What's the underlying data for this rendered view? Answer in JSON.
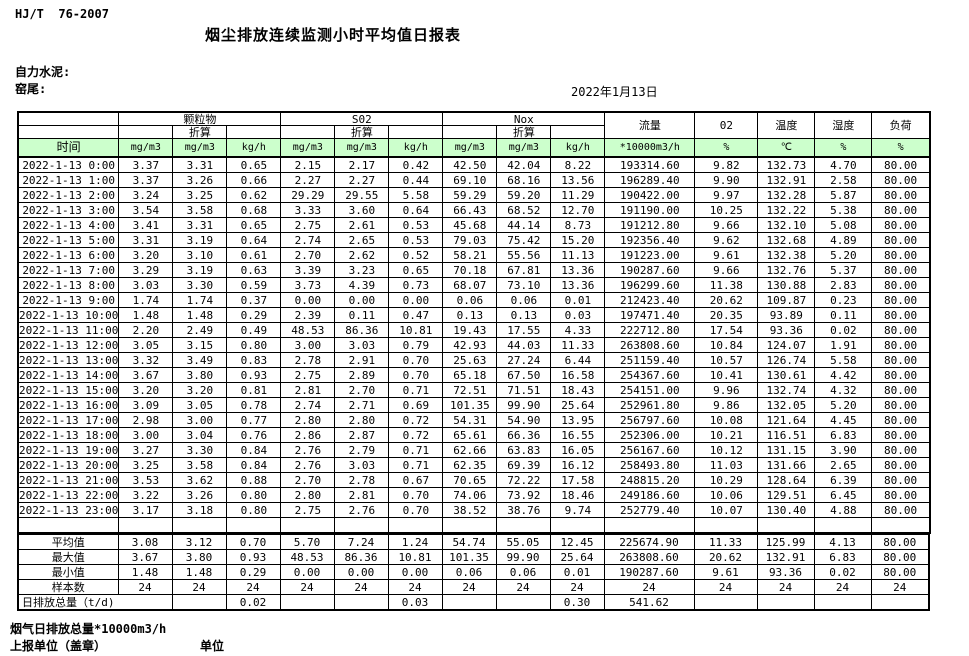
{
  "page": {
    "standard": "HJ/T  76-2007",
    "title": "烟尘排放连续监测小时平均值日报表",
    "company": "自力水泥:",
    "station": "窑尾:",
    "date": "2022年1月13日"
  },
  "colors": {
    "header_green": "#ccffcc"
  },
  "table": {
    "header": {
      "pm": "颗粒物",
      "so2": "S02",
      "nox": "Nox",
      "converted": "折算",
      "flow": "流量",
      "o2": "02",
      "temp": "温度",
      "humidity": "湿度",
      "load": "负荷"
    },
    "units": [
      "时间",
      "mg/m3",
      "mg/m3",
      "kg/h",
      "mg/m3",
      "mg/m3",
      "kg/h",
      "mg/m3",
      "mg/m3",
      "kg/h",
      "*10000m3/h",
      "%",
      "℃",
      "%",
      "%"
    ],
    "rows": [
      [
        "2022-1-13 0:00",
        "3.37",
        "3.31",
        "0.65",
        "2.15",
        "2.17",
        "0.42",
        "42.50",
        "42.04",
        "8.22",
        "193314.60",
        "9.82",
        "132.73",
        "4.70",
        "80.00"
      ],
      [
        "2022-1-13 1:00",
        "3.37",
        "3.26",
        "0.66",
        "2.27",
        "2.27",
        "0.44",
        "69.10",
        "68.16",
        "13.56",
        "196289.40",
        "9.90",
        "132.91",
        "2.58",
        "80.00"
      ],
      [
        "2022-1-13 2:00",
        "3.24",
        "3.25",
        "0.62",
        "29.29",
        "29.55",
        "5.58",
        "59.29",
        "59.20",
        "11.29",
        "190422.00",
        "9.97",
        "132.28",
        "5.87",
        "80.00"
      ],
      [
        "2022-1-13 3:00",
        "3.54",
        "3.58",
        "0.68",
        "3.33",
        "3.60",
        "0.64",
        "66.43",
        "68.52",
        "12.70",
        "191190.00",
        "10.25",
        "132.22",
        "5.38",
        "80.00"
      ],
      [
        "2022-1-13 4:00",
        "3.41",
        "3.31",
        "0.65",
        "2.75",
        "2.61",
        "0.53",
        "45.68",
        "44.14",
        "8.73",
        "191212.80",
        "9.66",
        "132.10",
        "5.08",
        "80.00"
      ],
      [
        "2022-1-13 5:00",
        "3.31",
        "3.19",
        "0.64",
        "2.74",
        "2.65",
        "0.53",
        "79.03",
        "75.42",
        "15.20",
        "192356.40",
        "9.62",
        "132.68",
        "4.89",
        "80.00"
      ],
      [
        "2022-1-13 6:00",
        "3.20",
        "3.10",
        "0.61",
        "2.70",
        "2.62",
        "0.52",
        "58.21",
        "55.56",
        "11.13",
        "191223.00",
        "9.61",
        "132.38",
        "5.20",
        "80.00"
      ],
      [
        "2022-1-13 7:00",
        "3.29",
        "3.19",
        "0.63",
        "3.39",
        "3.23",
        "0.65",
        "70.18",
        "67.81",
        "13.36",
        "190287.60",
        "9.66",
        "132.76",
        "5.37",
        "80.00"
      ],
      [
        "2022-1-13 8:00",
        "3.03",
        "3.30",
        "0.59",
        "3.73",
        "4.39",
        "0.73",
        "68.07",
        "73.10",
        "13.36",
        "196299.60",
        "11.38",
        "130.88",
        "2.83",
        "80.00"
      ],
      [
        "2022-1-13 9:00",
        "1.74",
        "1.74",
        "0.37",
        "0.00",
        "0.00",
        "0.00",
        "0.06",
        "0.06",
        "0.01",
        "212423.40",
        "20.62",
        "109.87",
        "0.23",
        "80.00"
      ],
      [
        "2022-1-13 10:00",
        "1.48",
        "1.48",
        "0.29",
        "2.39",
        "0.11",
        "0.47",
        "0.13",
        "0.13",
        "0.03",
        "197471.40",
        "20.35",
        "93.89",
        "0.11",
        "80.00"
      ],
      [
        "2022-1-13 11:00",
        "2.20",
        "2.49",
        "0.49",
        "48.53",
        "86.36",
        "10.81",
        "19.43",
        "17.55",
        "4.33",
        "222712.80",
        "17.54",
        "93.36",
        "0.02",
        "80.00"
      ],
      [
        "2022-1-13 12:00",
        "3.05",
        "3.15",
        "0.80",
        "3.00",
        "3.03",
        "0.79",
        "42.93",
        "44.03",
        "11.33",
        "263808.60",
        "10.84",
        "124.07",
        "1.91",
        "80.00"
      ],
      [
        "2022-1-13 13:00",
        "3.32",
        "3.49",
        "0.83",
        "2.78",
        "2.91",
        "0.70",
        "25.63",
        "27.24",
        "6.44",
        "251159.40",
        "10.57",
        "126.74",
        "5.58",
        "80.00"
      ],
      [
        "2022-1-13 14:00",
        "3.67",
        "3.80",
        "0.93",
        "2.75",
        "2.89",
        "0.70",
        "65.18",
        "67.50",
        "16.58",
        "254367.60",
        "10.41",
        "130.61",
        "4.42",
        "80.00"
      ],
      [
        "2022-1-13 15:00",
        "3.20",
        "3.20",
        "0.81",
        "2.81",
        "2.70",
        "0.71",
        "72.51",
        "71.51",
        "18.43",
        "254151.00",
        "9.96",
        "132.74",
        "4.32",
        "80.00"
      ],
      [
        "2022-1-13 16:00",
        "3.09",
        "3.05",
        "0.78",
        "2.74",
        "2.71",
        "0.69",
        "101.35",
        "99.90",
        "25.64",
        "252961.80",
        "9.86",
        "132.05",
        "5.20",
        "80.00"
      ],
      [
        "2022-1-13 17:00",
        "2.98",
        "3.00",
        "0.77",
        "2.80",
        "2.80",
        "0.72",
        "54.31",
        "54.90",
        "13.95",
        "256797.60",
        "10.08",
        "121.64",
        "4.45",
        "80.00"
      ],
      [
        "2022-1-13 18:00",
        "3.00",
        "3.04",
        "0.76",
        "2.86",
        "2.87",
        "0.72",
        "65.61",
        "66.36",
        "16.55",
        "252306.00",
        "10.21",
        "116.51",
        "6.83",
        "80.00"
      ],
      [
        "2022-1-13 19:00",
        "3.27",
        "3.30",
        "0.84",
        "2.76",
        "2.79",
        "0.71",
        "62.66",
        "63.83",
        "16.05",
        "256167.60",
        "10.12",
        "131.15",
        "3.90",
        "80.00"
      ],
      [
        "2022-1-13 20:00",
        "3.25",
        "3.58",
        "0.84",
        "2.76",
        "3.03",
        "0.71",
        "62.35",
        "69.39",
        "16.12",
        "258493.80",
        "11.03",
        "131.66",
        "2.65",
        "80.00"
      ],
      [
        "2022-1-13 21:00",
        "3.53",
        "3.62",
        "0.88",
        "2.70",
        "2.78",
        "0.67",
        "70.65",
        "72.22",
        "17.58",
        "248815.20",
        "10.29",
        "128.64",
        "6.39",
        "80.00"
      ],
      [
        "2022-1-13 22:00",
        "3.22",
        "3.26",
        "0.80",
        "2.80",
        "2.81",
        "0.70",
        "74.06",
        "73.92",
        "18.46",
        "249186.60",
        "10.06",
        "129.51",
        "6.45",
        "80.00"
      ],
      [
        "2022-1-13 23:00",
        "3.17",
        "3.18",
        "0.80",
        "2.75",
        "2.76",
        "0.70",
        "38.52",
        "38.76",
        "9.74",
        "252779.40",
        "10.07",
        "130.40",
        "4.88",
        "80.00"
      ]
    ],
    "summary": [
      {
        "label": "平均值",
        "span": 1,
        "values": [
          "3.08",
          "3.12",
          "0.70",
          "5.70",
          "7.24",
          "1.24",
          "54.74",
          "55.05",
          "12.45",
          "225674.90",
          "11.33",
          "125.99",
          "4.13",
          "80.00"
        ]
      },
      {
        "label": "最大值",
        "span": 1,
        "values": [
          "3.67",
          "3.80",
          "0.93",
          "48.53",
          "86.36",
          "10.81",
          "101.35",
          "99.90",
          "25.64",
          "263808.60",
          "20.62",
          "132.91",
          "6.83",
          "80.00"
        ]
      },
      {
        "label": "最小值",
        "span": 1,
        "values": [
          "1.48",
          "1.48",
          "0.29",
          "0.00",
          "0.00",
          "0.00",
          "0.06",
          "0.06",
          "0.01",
          "190287.60",
          "9.61",
          "93.36",
          "0.02",
          "80.00"
        ]
      },
      {
        "label": "样本数",
        "span": 1,
        "values": [
          "24",
          "24",
          "24",
          "24",
          "24",
          "24",
          "24",
          "24",
          "24",
          "24",
          "24",
          "24",
          "24",
          "24"
        ]
      },
      {
        "label": "日排放总量（t/d)",
        "span": 2,
        "values": [
          "",
          "0.02",
          "",
          "",
          "0.03",
          "",
          "",
          "0.30",
          "541.62",
          "",
          "",
          "",
          ""
        ]
      }
    ]
  },
  "footer": {
    "flue_total": "烟气日排放总量*10000m3/h",
    "report_unit": "上报单位（盖章）",
    "unit": "单位"
  }
}
